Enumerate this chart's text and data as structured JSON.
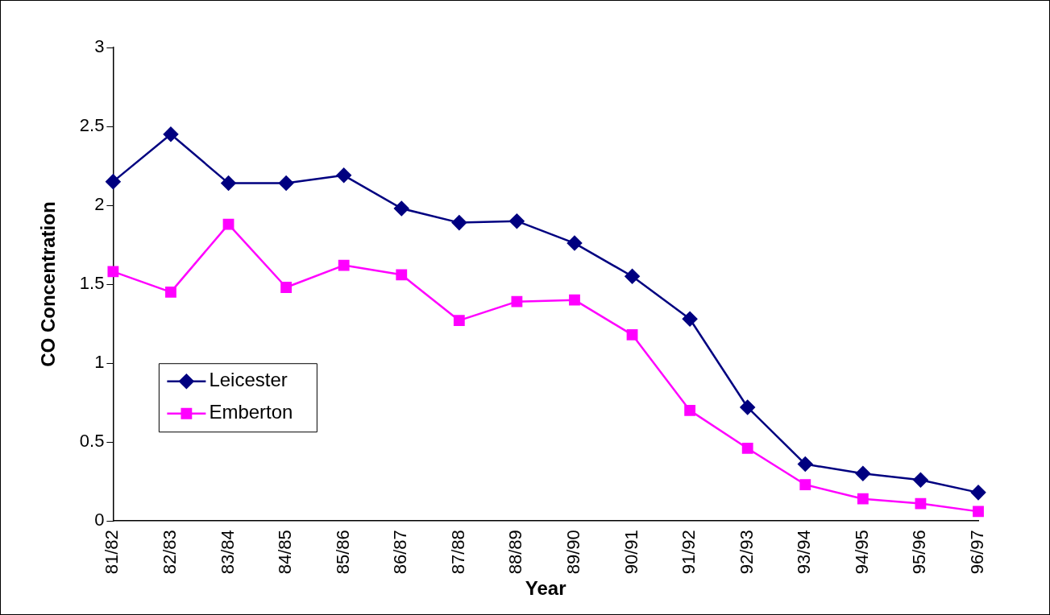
{
  "chart_data": {
    "type": "line",
    "xlabel": "Year",
    "ylabel": "CO Concentration",
    "categories": [
      "81/82",
      "82/83",
      "83/84",
      "84/85",
      "85/86",
      "86/87",
      "87/88",
      "88/89",
      "89/90",
      "90/91",
      "91/92",
      "92/93",
      "93/94",
      "94/95",
      "95/96",
      "96/97"
    ],
    "series": [
      {
        "name": "Leicester",
        "color": "#000080",
        "marker": "diamond",
        "values": [
          2.15,
          2.45,
          2.14,
          2.14,
          2.19,
          1.98,
          1.89,
          1.9,
          1.76,
          1.55,
          1.28,
          0.72,
          0.36,
          0.3,
          0.26,
          0.18
        ]
      },
      {
        "name": "Emberton",
        "color": "#ff00ff",
        "marker": "square",
        "values": [
          1.58,
          1.45,
          1.88,
          1.48,
          1.62,
          1.56,
          1.27,
          1.39,
          1.4,
          1.18,
          0.7,
          0.46,
          0.23,
          0.14,
          0.11,
          0.06
        ]
      }
    ],
    "ylim": [
      0,
      3
    ],
    "yticks": [
      0,
      0.5,
      1,
      1.5,
      2,
      2.5,
      3
    ],
    "grid": false,
    "legend": "left",
    "line_style": "solid"
  }
}
